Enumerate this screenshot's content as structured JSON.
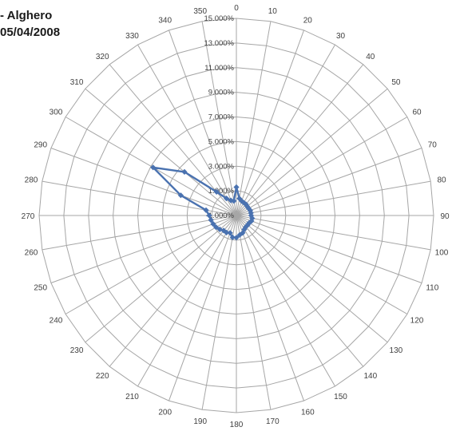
{
  "title_lines": [
    "- Alghero",
    "05/04/2008"
  ],
  "chart_data": {
    "type": "radar",
    "title": "- Alghero 05/04/2008",
    "angle_unit": "degrees",
    "angle_labels": [
      "0",
      "10",
      "20",
      "30",
      "40",
      "50",
      "60",
      "70",
      "80",
      "90",
      "100",
      "110",
      "120",
      "130",
      "140",
      "150",
      "160",
      "170",
      "180",
      "190",
      "200",
      "210",
      "220",
      "230",
      "240",
      "250",
      "260",
      "270",
      "280",
      "290",
      "300",
      "310",
      "320",
      "330",
      "340",
      "350"
    ],
    "radial_ticks": [
      "-1.000%",
      "1.000%",
      "3.000%",
      "5.000%",
      "7.000%",
      "9.000%",
      "11.000%",
      "13.000%",
      "15.000%"
    ],
    "rlim": [
      -0.01,
      0.15
    ],
    "radial_step": 0.02,
    "grid": true,
    "series": [
      {
        "color": "#4a72b0",
        "points": [
          {
            "angle": 0,
            "value": 0.013
          },
          {
            "angle": 10,
            "value": 0.004
          },
          {
            "angle": 20,
            "value": 0.0025
          },
          {
            "angle": 30,
            "value": 0.002
          },
          {
            "angle": 40,
            "value": 0.002
          },
          {
            "angle": 50,
            "value": 0.0015
          },
          {
            "angle": 60,
            "value": 0.0015
          },
          {
            "angle": 70,
            "value": 0.002
          },
          {
            "angle": 80,
            "value": 0.002
          },
          {
            "angle": 90,
            "value": 0.002
          },
          {
            "angle": 100,
            "value": 0.003
          },
          {
            "angle": 110,
            "value": 0.003
          },
          {
            "angle": 120,
            "value": 0.002
          },
          {
            "angle": 130,
            "value": 0.002
          },
          {
            "angle": 140,
            "value": 0.002
          },
          {
            "angle": 150,
            "value": 0.003
          },
          {
            "angle": 160,
            "value": 0.005
          },
          {
            "angle": 170,
            "value": 0.006
          },
          {
            "angle": 180,
            "value": 0.008
          },
          {
            "angle": 190,
            "value": 0.008
          },
          {
            "angle": 200,
            "value": 0.005
          },
          {
            "angle": 210,
            "value": 0.006
          },
          {
            "angle": 220,
            "value": 0.006
          },
          {
            "angle": 230,
            "value": 0.0075
          },
          {
            "angle": 240,
            "value": 0.009
          },
          {
            "angle": 250,
            "value": 0.01
          },
          {
            "angle": 260,
            "value": 0.011
          },
          {
            "angle": 270,
            "value": 0.012
          },
          {
            "angle": 280,
            "value": 0.015
          },
          {
            "angle": 290,
            "value": 0.038
          },
          {
            "angle": 300,
            "value": 0.068
          },
          {
            "angle": 310,
            "value": 0.045
          },
          {
            "angle": 320,
            "value": 0.015
          },
          {
            "angle": 330,
            "value": 0.006
          },
          {
            "angle": 340,
            "value": 0.003
          },
          {
            "angle": 350,
            "value": 0.002
          }
        ]
      }
    ]
  }
}
